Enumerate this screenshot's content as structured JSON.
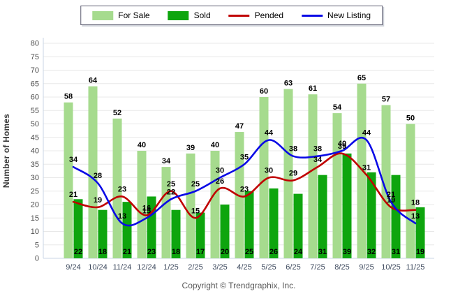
{
  "legend": [
    {
      "label": "For Sale",
      "swatch": "bar",
      "color": "#A6DB8E"
    },
    {
      "label": "Sold",
      "swatch": "bar",
      "color": "#0EA50E"
    },
    {
      "label": "Pended",
      "swatch": "line",
      "color": "#C00000"
    },
    {
      "label": "New Listing",
      "swatch": "line",
      "color": "#0A0AE6"
    }
  ],
  "axis": {
    "y_title": "Number of Homes"
  },
  "footer": {
    "copyright": "Copyright © Trendgraphix, Inc."
  },
  "chart_data": {
    "type": "bar",
    "subtype": "grouped-bars-with-lines",
    "categories": [
      "9/24",
      "10/24",
      "11/24",
      "12/24",
      "1/25",
      "2/25",
      "3/25",
      "4/25",
      "5/25",
      "6/25",
      "7/25",
      "8/25",
      "9/25",
      "10/25",
      "11/25"
    ],
    "series": [
      {
        "name": "For Sale",
        "type": "bar",
        "color": "#A6DB8E",
        "values": [
          58,
          64,
          52,
          40,
          34,
          39,
          40,
          47,
          60,
          63,
          61,
          54,
          65,
          57,
          50
        ]
      },
      {
        "name": "Sold",
        "type": "bar",
        "color": "#0EA50E",
        "values": [
          22,
          18,
          21,
          23,
          18,
          17,
          20,
          25,
          26,
          24,
          31,
          39,
          32,
          31,
          19
        ]
      },
      {
        "name": "Pended",
        "type": "line",
        "color": "#C00000",
        "values": [
          21,
          19,
          23,
          16,
          25,
          15,
          26,
          23,
          30,
          29,
          34,
          39,
          31,
          19,
          18
        ]
      },
      {
        "name": "New Listing",
        "type": "line",
        "color": "#0A0AE6",
        "values": [
          34,
          28,
          13,
          15,
          22,
          25,
          30,
          35,
          44,
          38,
          38,
          40,
          44,
          21,
          13
        ]
      }
    ],
    "title": "",
    "xlabel": "",
    "ylabel": "Number of Homes",
    "ylim": [
      0,
      80
    ],
    "ytick_step": 5,
    "grid": true,
    "legend_position": "top"
  }
}
